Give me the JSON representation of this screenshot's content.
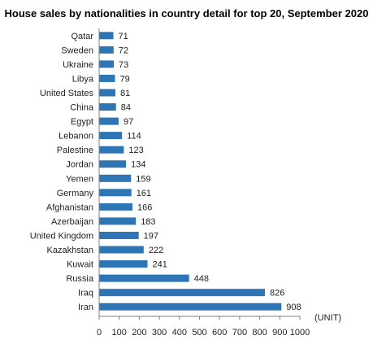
{
  "chart_data": {
    "type": "bar",
    "orientation": "horizontal",
    "title": "House sales by nationalities in country detail for top 20, September 2020",
    "unit_label": "(UNIT)",
    "categories": [
      "Qatar",
      "Sweden",
      "Ukraine",
      "Libya",
      "United States",
      "China",
      "Egypt",
      "Lebanon",
      "Palestine",
      "Jordan",
      "Yemen",
      "Germany",
      "Afghanistan",
      "Azerbaijan",
      "United Kingdom",
      "Kazakhstan",
      "Kuwait",
      "Russia",
      "Iraq",
      "Iran"
    ],
    "values": [
      71,
      72,
      73,
      79,
      81,
      84,
      97,
      114,
      123,
      134,
      159,
      161,
      166,
      183,
      197,
      222,
      241,
      448,
      826,
      908
    ],
    "xlim": [
      0,
      1000
    ],
    "xticks": [
      0,
      100,
      200,
      300,
      400,
      500,
      600,
      700,
      800,
      900,
      1000
    ],
    "bar_color": "#2e75b6",
    "grid": false
  }
}
